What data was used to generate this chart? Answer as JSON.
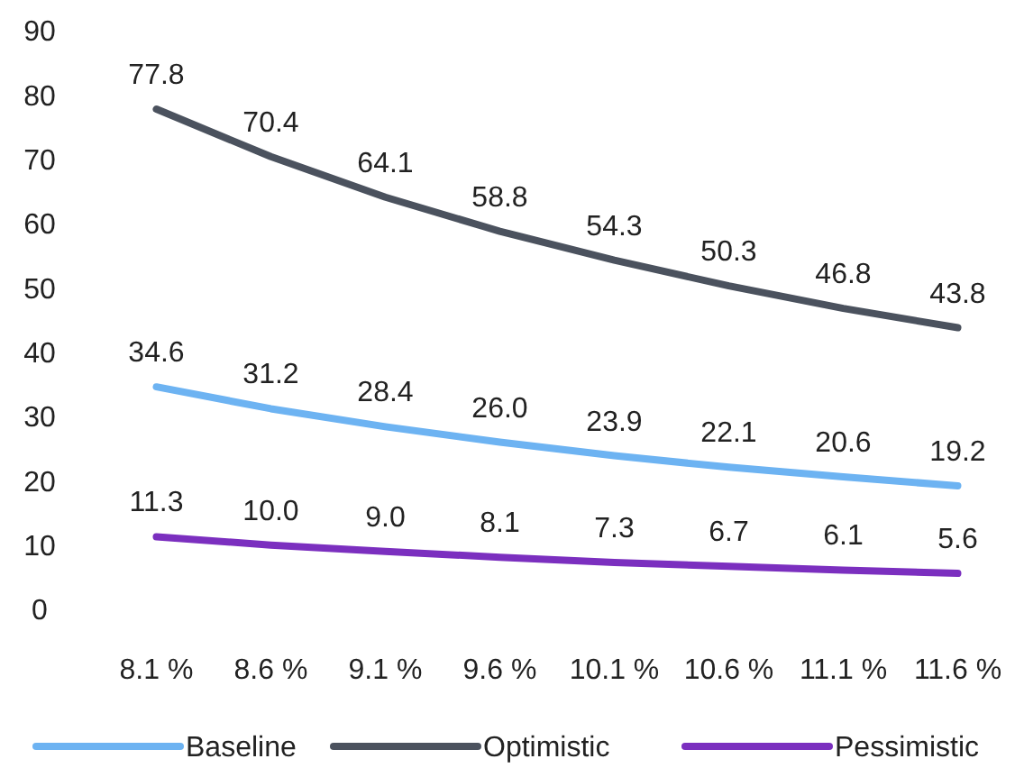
{
  "chart_data": {
    "type": "line",
    "categories": [
      "8.1 %",
      "8.6 %",
      "9.1 %",
      "9.6 %",
      "10.1 %",
      "10.6 %",
      "11.1 %",
      "11.6 %"
    ],
    "series": [
      {
        "name": "Baseline",
        "color": "#6db3f2",
        "values": [
          34.6,
          31.2,
          28.4,
          26.0,
          23.9,
          22.1,
          20.6,
          19.2
        ],
        "value_labels": [
          "34.6",
          "31.2",
          "28.4",
          "26.0",
          "23.9",
          "22.1",
          "20.6",
          "19.2"
        ]
      },
      {
        "name": "Optimistic",
        "color": "#4b525e",
        "values": [
          77.8,
          70.4,
          64.1,
          58.8,
          54.3,
          50.3,
          46.8,
          43.8
        ],
        "value_labels": [
          "77.8",
          "70.4",
          "64.1",
          "58.8",
          "54.3",
          "50.3",
          "46.8",
          "43.8"
        ]
      },
      {
        "name": "Pessimistic",
        "color": "#7b2fbf",
        "values": [
          11.3,
          10.0,
          9.0,
          8.1,
          7.3,
          6.7,
          6.1,
          5.6
        ],
        "value_labels": [
          "11.3",
          "10.0",
          "9.0",
          "8.1",
          "7.3",
          "6.7",
          "6.1",
          "5.6"
        ]
      }
    ],
    "ylim": [
      0,
      90
    ],
    "yticks": [
      0,
      10,
      20,
      30,
      40,
      50,
      60,
      70,
      80,
      90
    ],
    "grid": false,
    "legend": "bottom",
    "marker": "none",
    "line_style": "solid"
  }
}
